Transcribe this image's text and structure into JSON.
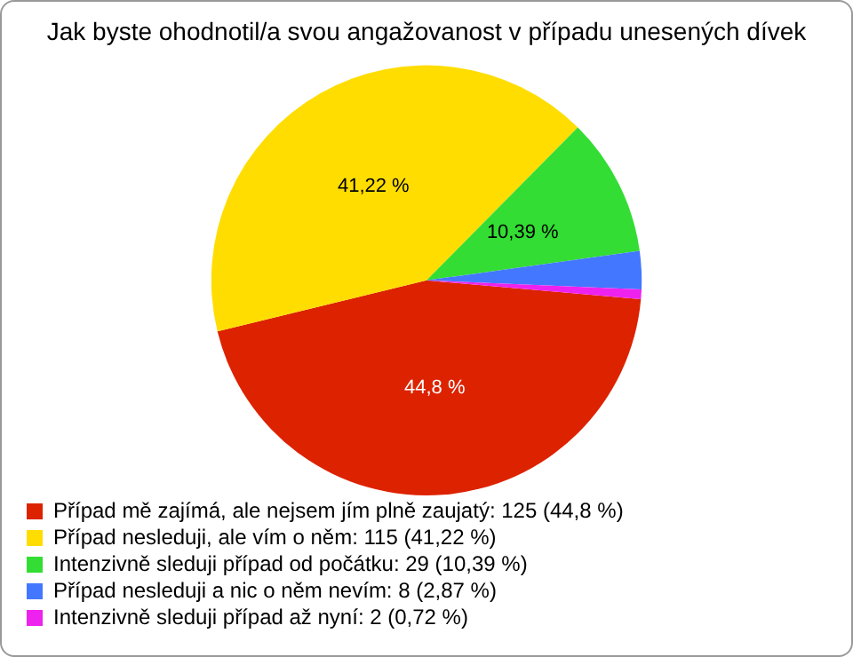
{
  "chart_data": {
    "type": "pie",
    "title": "Jak byste ohodnotil/a svou angažovanost v případu unesených dívek",
    "categories": [
      "Případ mě zajímá, ale nejsem jím plně zaujatý: 125 (44,8 %)",
      "Případ nesleduji, ale vím o něm: 115 (41,22 %)",
      "Intenzivně sleduji případ od počátku: 29 (10,39 %)",
      "Případ nesleduji a nic o něm nevím: 8 (2,87 %)",
      "Intenzivně sleduji případ až nyní: 2 (0,72 %)"
    ],
    "values": [
      44.8,
      41.22,
      10.39,
      2.87,
      0.72
    ],
    "colors": [
      "#dd2200",
      "#ffdd00",
      "#33dd33",
      "#4477ff",
      "#ee22ee"
    ],
    "value_labels": [
      "44,8 %",
      "41,22 %",
      "10,39 %",
      null,
      null
    ],
    "legend": "bottom"
  }
}
